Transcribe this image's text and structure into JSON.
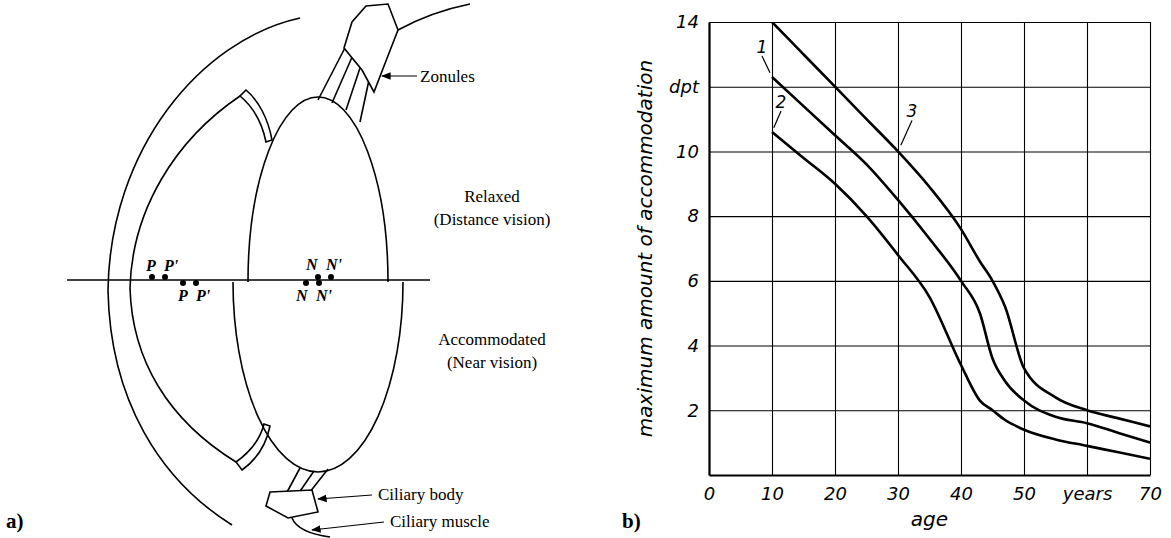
{
  "diagram": {
    "panel_label": "a)",
    "labels": {
      "zonules": "Zonules",
      "relaxed": "Relaxed",
      "relaxed_note": "(Distance vision)",
      "accommodated": "Accommodated",
      "accommodated_note": "(Near vision)",
      "ciliary_body": "Ciliary body",
      "ciliary_muscle": "Ciliary muscle"
    },
    "cardinal_points": [
      "P",
      "P'",
      "N",
      "N'"
    ]
  },
  "chart_data": {
    "type": "line",
    "panel_label": "b)",
    "x_label": "age",
    "y_label": "maximum amount of accommodation",
    "x": [
      10,
      15,
      20,
      25,
      30,
      35,
      40,
      43,
      45,
      47,
      50,
      55,
      60,
      65,
      70
    ],
    "series": [
      {
        "name": "1",
        "color": "#000000",
        "values": [
          12.3,
          11.4,
          10.5,
          9.6,
          8.5,
          7.3,
          6.0,
          5.0,
          3.6,
          2.9,
          2.3,
          1.8,
          1.6,
          1.3,
          1.0
        ]
      },
      {
        "name": "2",
        "color": "#000000",
        "values": [
          10.6,
          9.8,
          9.0,
          8.0,
          6.8,
          5.5,
          3.4,
          2.3,
          2.0,
          1.7,
          1.4,
          1.1,
          0.9,
          0.7,
          0.5
        ]
      },
      {
        "name": "3",
        "color": "#000000",
        "values": [
          14.0,
          13.0,
          12.0,
          11.0,
          10.0,
          8.9,
          7.6,
          6.6,
          6.0,
          5.2,
          3.3,
          2.4,
          2.0,
          1.75,
          1.5
        ]
      }
    ],
    "xlim": [
      0,
      70
    ],
    "xticks": [
      0,
      10,
      20,
      30,
      40,
      50,
      {
        "value": 60,
        "label": "years"
      },
      70
    ],
    "ylim": [
      0,
      14
    ],
    "yticks": [
      2,
      4,
      6,
      8,
      10,
      {
        "value": 12,
        "label": "dpt"
      },
      14
    ],
    "grid": true
  }
}
